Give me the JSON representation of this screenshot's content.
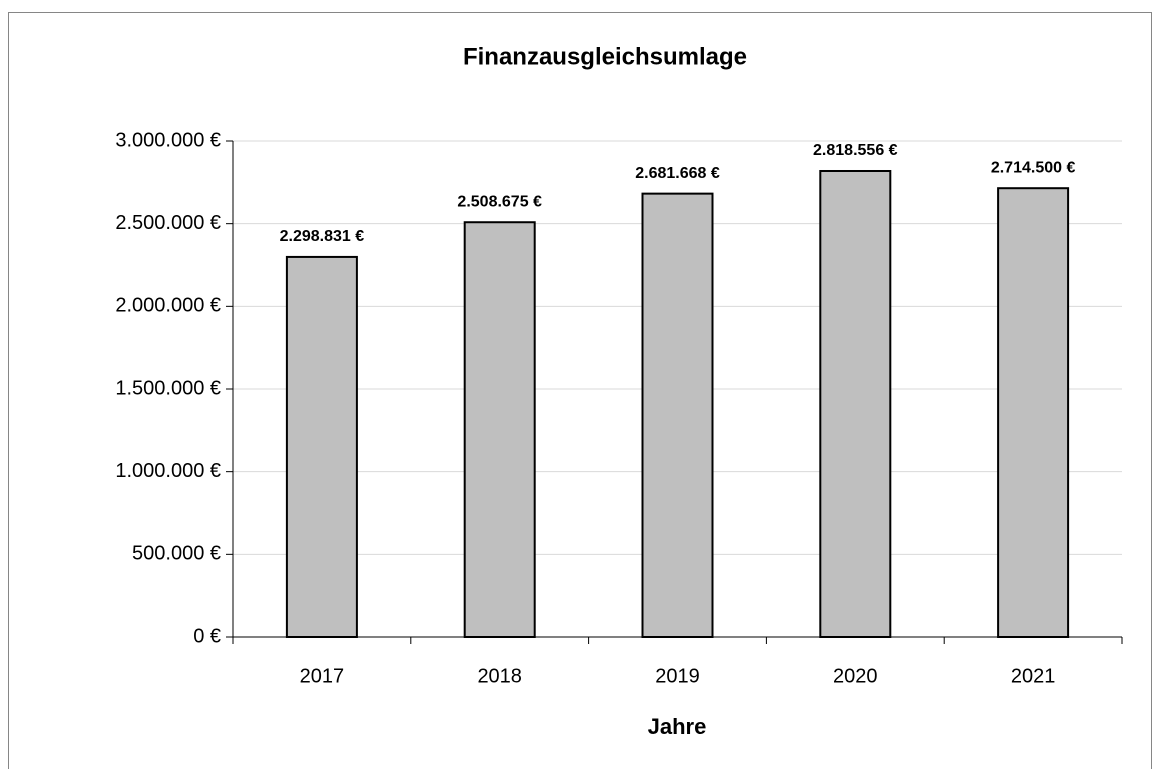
{
  "chart_data": {
    "type": "bar",
    "title": "Finanzausgleichsumlage",
    "x_label": "Jahre",
    "categories": [
      "2017",
      "2018",
      "2019",
      "2020",
      "2021"
    ],
    "values": [
      2298831,
      2508675,
      2681668,
      2818556,
      2714500
    ],
    "value_labels": [
      "2.298.831 €",
      "2.508.675 €",
      "2.681.668 €",
      "2.818.556 €",
      "2.714.500 €"
    ],
    "color": "#bfbfbf",
    "ylim": [
      0,
      3000000
    ],
    "yticks": [
      {
        "value": 0,
        "label": "0 €"
      },
      {
        "value": 500000,
        "label": "500.000 €"
      },
      {
        "value": 1000000,
        "label": "1.000.000 €"
      },
      {
        "value": 1500000,
        "label": "1.500.000 €"
      },
      {
        "value": 2000000,
        "label": "2.000.000 €"
      },
      {
        "value": 2500000,
        "label": "2.500.000 €"
      },
      {
        "value": 3000000,
        "label": "3.000.000 €"
      }
    ],
    "grid": true
  }
}
